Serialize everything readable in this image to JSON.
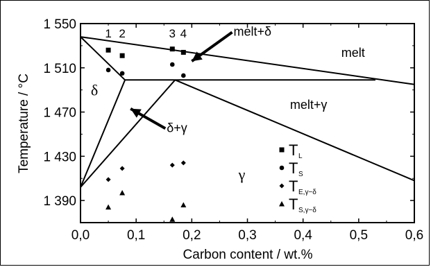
{
  "chart_data": {
    "type": "line",
    "xlabel": "Carbon content / wt.%",
    "ylabel": "Temperature / °C",
    "xlim": [
      0.0,
      0.6
    ],
    "ylim": [
      1370,
      1550
    ],
    "x_ticks": [
      "0,0",
      "0,1",
      "0,2",
      "0,3",
      "0,4",
      "0,5",
      "0,6"
    ],
    "x_tick_values": [
      0.0,
      0.1,
      0.2,
      0.3,
      0.4,
      0.5,
      0.6
    ],
    "y_ticks": [
      "1 390",
      "1 430",
      "1 470",
      "1 510",
      "1 550"
    ],
    "y_tick_values": [
      1390,
      1430,
      1470,
      1510,
      1550
    ],
    "phase_lines": [
      {
        "name": "liquidus",
        "x": [
          0.0,
          0.6
        ],
        "y": [
          1538,
          1495
        ]
      },
      {
        "name": "peritectic",
        "x": [
          0.08,
          0.53
        ],
        "y": [
          1499,
          1499
        ]
      },
      {
        "name": "delta-solidus",
        "x": [
          0.0,
          0.08
        ],
        "y": [
          1538,
          1499
        ]
      },
      {
        "name": "delta-solvus",
        "x": [
          0.0,
          0.08
        ],
        "y": [
          1402,
          1499
        ]
      },
      {
        "name": "gamma-boundary",
        "x": [
          0.0,
          0.17
        ],
        "y": [
          1402,
          1499
        ]
      },
      {
        "name": "gamma-solidus",
        "x": [
          0.17,
          0.6
        ],
        "y": [
          1499,
          1408
        ]
      }
    ],
    "series": [
      {
        "name": "T_L",
        "x": [
          0.05,
          0.075,
          0.165,
          0.185
        ],
        "y": [
          1526,
          1521,
          1527,
          1524
        ]
      },
      {
        "name": "T_S",
        "x": [
          0.05,
          0.075,
          0.165,
          0.185
        ],
        "y": [
          1508,
          1505,
          1513,
          1503
        ]
      },
      {
        "name": "T_E,γ−δ",
        "x": [
          0.05,
          0.075,
          0.165,
          0.185
        ],
        "y": [
          1409,
          1419,
          1422,
          1424
        ]
      },
      {
        "name": "T_S,γ−δ",
        "x": [
          0.05,
          0.075,
          0.165,
          0.185
        ],
        "y": [
          1384,
          1397,
          1373,
          1386
        ]
      }
    ],
    "sample_numbers": [
      {
        "label": "1",
        "x": 0.05
      },
      {
        "label": "2",
        "x": 0.075
      },
      {
        "label": "3",
        "x": 0.165
      },
      {
        "label": "4",
        "x": 0.185
      }
    ],
    "region_labels": [
      {
        "text": "melt",
        "x": 0.49,
        "y": 1520
      },
      {
        "text": "melt+γ",
        "x": 0.41,
        "y": 1473
      },
      {
        "text": "γ",
        "x": 0.29,
        "y": 1409
      },
      {
        "text": "δ",
        "x": 0.025,
        "y": 1485
      }
    ],
    "annotations": [
      {
        "text": "melt+δ",
        "x": 0.275,
        "y": 1539,
        "arrow_to": [
          0.2,
          1516
        ]
      },
      {
        "text": "δ+γ",
        "x": 0.155,
        "y": 1452,
        "arrow_to": [
          0.09,
          1473
        ]
      }
    ],
    "legend": {
      "position": "bottom-right",
      "entries": [
        {
          "marker": "square",
          "main": "T",
          "sub": "L"
        },
        {
          "marker": "circle",
          "main": "T",
          "sub": "S"
        },
        {
          "marker": "diamond",
          "main": "T",
          "sub": "E,γ−δ"
        },
        {
          "marker": "triangle",
          "main": "T",
          "sub": "S,γ−δ"
        }
      ]
    },
    "grid": false
  }
}
